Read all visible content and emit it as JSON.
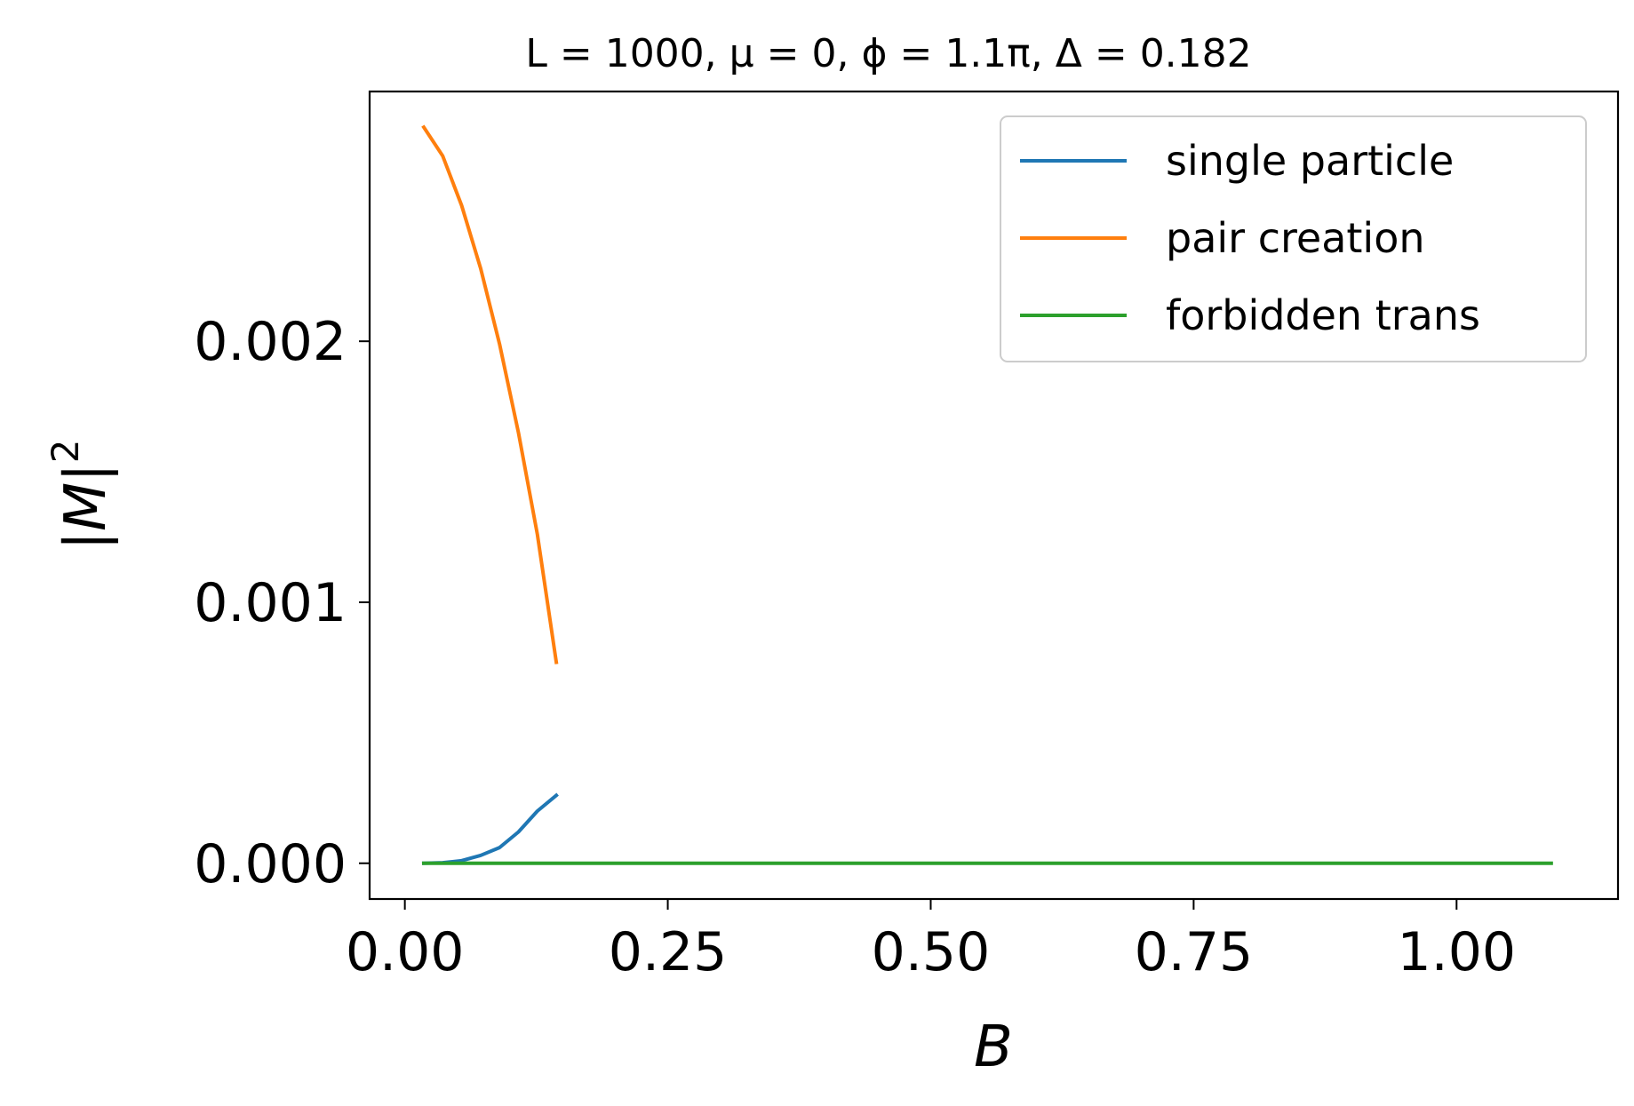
{
  "chart_data": {
    "type": "line",
    "title": "L = 1000, μ = 0, ϕ = 1.1π, Δ = 0.182",
    "xlabel": "B",
    "ylabel": "|M|",
    "ylabel_exponent": "2",
    "xlim": [
      -0.0335,
      1.1535
    ],
    "ylim": [
      -0.000137,
      0.002957
    ],
    "xticks": [
      0.0,
      0.25,
      0.5,
      0.75,
      1.0
    ],
    "xtick_labels": [
      "0.00",
      "0.25",
      "0.50",
      "0.75",
      "1.00"
    ],
    "yticks": [
      0.0,
      0.001,
      0.002
    ],
    "ytick_labels": [
      "0.000",
      "0.001",
      "0.002"
    ],
    "grid": false,
    "legend_position": "top-right",
    "series": [
      {
        "name": "single particle",
        "color": "#1f77b4",
        "x": [
          0.018,
          0.036,
          0.054,
          0.072,
          0.09,
          0.108,
          0.126,
          0.144
        ],
        "y": [
          0.0,
          2e-06,
          1e-05,
          3e-05,
          6e-05,
          0.00012,
          0.0002,
          0.00026
        ]
      },
      {
        "name": "pair creation",
        "color": "#ff7f0e",
        "x": [
          0.018,
          0.036,
          0.054,
          0.072,
          0.09,
          0.108,
          0.126,
          0.144
        ],
        "y": [
          0.00282,
          0.00271,
          0.00252,
          0.00228,
          0.00199,
          0.00165,
          0.00126,
          0.00077
        ]
      },
      {
        "name": "forbidden trans",
        "color": "#2ca02c",
        "x": [
          0.018,
          1.09
        ],
        "y": [
          0.0,
          0.0
        ]
      }
    ]
  }
}
